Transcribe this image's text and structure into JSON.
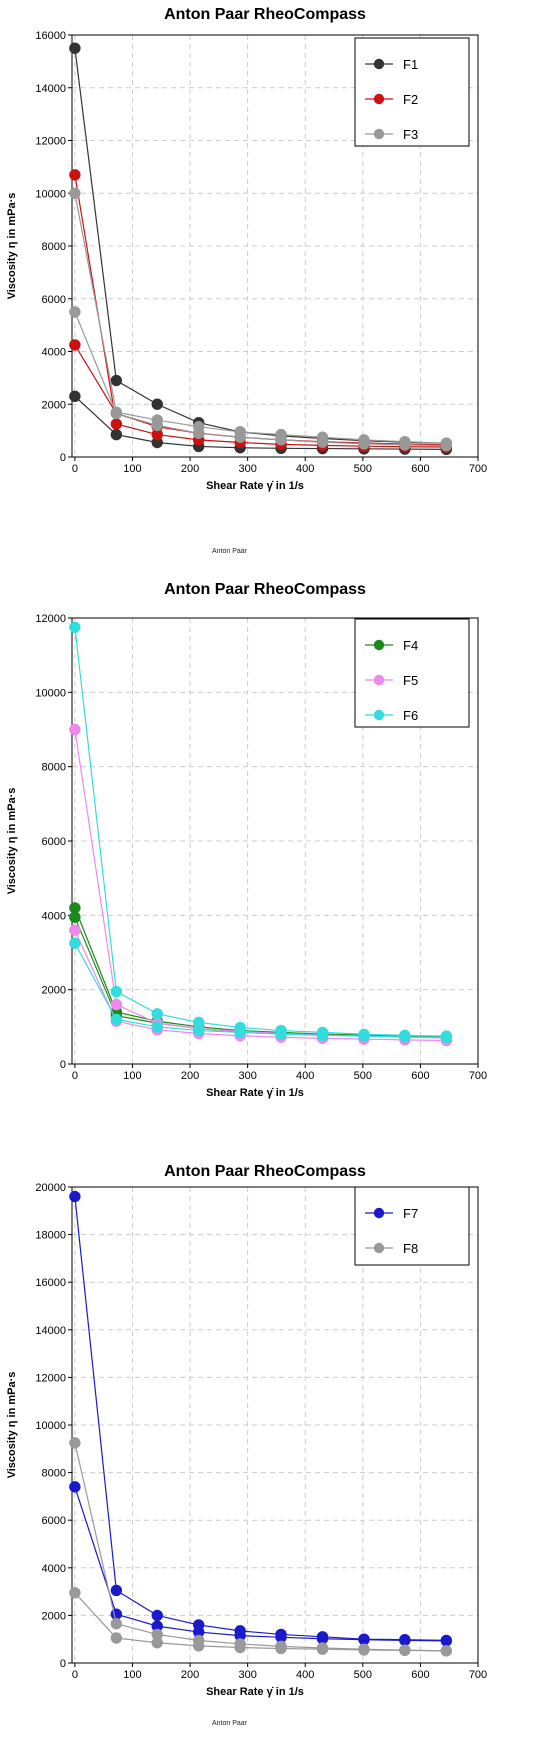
{
  "chart_data": [
    {
      "type": "line",
      "title": "Anton Paar RheoCompass",
      "footer": "Anton Paar",
      "xlabel": "Shear Rate γ̇ in 1/s",
      "ylabel": "Viscosity η in mPa·s",
      "xlim": [
        -5,
        700
      ],
      "ylim": [
        0,
        16000
      ],
      "xticks": [
        0,
        100,
        200,
        300,
        400,
        500,
        600,
        700
      ],
      "yticks": [
        0,
        2000,
        4000,
        6000,
        8000,
        10000,
        12000,
        14000,
        16000
      ],
      "grid": true,
      "legend_position": "top-right",
      "x": [
        0,
        72,
        143,
        215,
        287,
        358,
        430,
        502,
        573,
        645
      ],
      "series": [
        {
          "name": "F1",
          "color": "#333333",
          "segments": [
            {
              "x": [
                0,
                72,
                143,
                215,
                287,
                358,
                430,
                502,
                573,
                645
              ],
              "y": [
                15500,
                2900,
                2000,
                1300,
                950,
                800,
                700,
                620,
                560,
                520
              ]
            },
            {
              "x": [
                0,
                72,
                143,
                215,
                287,
                358,
                430,
                502,
                573,
                645
              ],
              "y": [
                2300,
                850,
                550,
                400,
                350,
                330,
                320,
                310,
                300,
                290
              ]
            }
          ]
        },
        {
          "name": "F2",
          "color": "#cc1111",
          "segments": [
            {
              "x": [
                0,
                72,
                143,
                215,
                287,
                358,
                430,
                502,
                573,
                645
              ],
              "y": [
                10700,
                1250,
                850,
                650,
                550,
                480,
                440,
                410,
                390,
                380
              ]
            },
            {
              "x": [
                0,
                72,
                143,
                215,
                287,
                358,
                430,
                502,
                573,
                645
              ],
              "y": [
                4250,
                1650,
                1150,
                900,
                750,
                650,
                580,
                530,
                490,
                460
              ]
            }
          ]
        },
        {
          "name": "F3",
          "color": "#999999",
          "segments": [
            {
              "x": [
                0,
                72,
                143,
                215,
                287,
                358,
                430,
                502,
                573,
                645
              ],
              "y": [
                10000,
                1700,
                1400,
                1150,
                950,
                850,
                750,
                650,
                580,
                520
              ]
            },
            {
              "x": [
                0,
                72,
                143,
                215,
                287,
                358,
                430,
                502,
                573,
                645
              ],
              "y": [
                5500,
                1650,
                1200,
                900,
                750,
                650,
                560,
                500,
                460,
                430
              ]
            }
          ]
        }
      ]
    },
    {
      "type": "line",
      "title": "Anton Paar RheoCompass",
      "footer": "",
      "xlabel": "Shear Rate γ̇ in 1/s",
      "ylabel": "Viscosity η in mPa·s",
      "xlim": [
        -5,
        700
      ],
      "ylim": [
        0,
        12000
      ],
      "xticks": [
        0,
        100,
        200,
        300,
        400,
        500,
        600,
        700
      ],
      "yticks": [
        0,
        2000,
        4000,
        6000,
        8000,
        10000,
        12000
      ],
      "grid": true,
      "legend_position": "top-right",
      "x": [
        0,
        72,
        143,
        215,
        287,
        358,
        430,
        502,
        573,
        645
      ],
      "series": [
        {
          "name": "F4",
          "color": "#1a8a1a",
          "segments": [
            {
              "x": [
                0,
                72,
                143,
                215,
                287,
                358,
                430,
                502,
                573,
                645
              ],
              "y": [
                4200,
                1400,
                1150,
                1000,
                900,
                850,
                800,
                780,
                760,
                740
              ]
            },
            {
              "x": [
                0,
                72,
                143,
                215,
                287,
                358,
                430,
                502,
                573,
                645
              ],
              "y": [
                3950,
                1300,
                1100,
                950,
                870,
                820,
                780,
                760,
                740,
                720
              ]
            }
          ]
        },
        {
          "name": "F5",
          "color": "#ee88ee",
          "segments": [
            {
              "x": [
                0,
                72,
                143,
                215,
                287,
                358,
                430,
                502,
                573,
                645
              ],
              "y": [
                9000,
                1600,
                1100,
                950,
                880,
                820,
                780,
                750,
                720,
                700
              ]
            },
            {
              "x": [
                0,
                72,
                143,
                215,
                287,
                358,
                430,
                502,
                573,
                645
              ],
              "y": [
                3600,
                1150,
                920,
                820,
                760,
                720,
                690,
                670,
                650,
                630
              ]
            }
          ]
        },
        {
          "name": "F6",
          "color": "#33dddd",
          "segments": [
            {
              "x": [
                0,
                72,
                143,
                215,
                287,
                358,
                430,
                502,
                573,
                645
              ],
              "y": [
                11750,
                1950,
                1350,
                1120,
                980,
                900,
                850,
                800,
                770,
                750
              ]
            },
            {
              "x": [
                0,
                72,
                143,
                215,
                287,
                358,
                430,
                502,
                573,
                645
              ],
              "y": [
                3250,
                1200,
                1000,
                900,
                850,
                800,
                770,
                750,
                730,
                710
              ]
            }
          ]
        }
      ]
    },
    {
      "type": "line",
      "title": "Anton Paar RheoCompass",
      "footer": "Anton Paar",
      "xlabel": "Shear Rate γ̇ in 1/s",
      "ylabel": "Viscosity η in mPa·s",
      "xlim": [
        -5,
        700
      ],
      "ylim": [
        0,
        20000
      ],
      "xticks": [
        0,
        100,
        200,
        300,
        400,
        500,
        600,
        700
      ],
      "yticks": [
        0,
        2000,
        4000,
        6000,
        8000,
        10000,
        12000,
        14000,
        16000,
        18000,
        20000
      ],
      "grid": true,
      "legend_position": "top-right",
      "x": [
        0,
        72,
        143,
        215,
        287,
        358,
        430,
        502,
        573,
        645
      ],
      "series": [
        {
          "name": "F7",
          "color": "#1a1acc",
          "segments": [
            {
              "x": [
                0,
                72,
                143,
                215,
                287,
                358,
                430,
                502,
                573,
                645
              ],
              "y": [
                19600,
                3050,
                2000,
                1600,
                1350,
                1200,
                1100,
                1000,
                980,
                950
              ]
            },
            {
              "x": [
                0,
                72,
                143,
                215,
                287,
                358,
                430,
                502,
                573,
                645
              ],
              "y": [
                7400,
                2050,
                1550,
                1300,
                1150,
                1080,
                1020,
                980,
                950,
                930
              ]
            }
          ]
        },
        {
          "name": "F8",
          "color": "#999999",
          "segments": [
            {
              "x": [
                0,
                72,
                143,
                215,
                287,
                358,
                430,
                502,
                573,
                645
              ],
              "y": [
                9250,
                1650,
                1200,
                950,
                800,
                700,
                630,
                580,
                540,
                510
              ]
            },
            {
              "x": [
                0,
                72,
                143,
                215,
                287,
                358,
                430,
                502,
                573,
                645
              ],
              "y": [
                2950,
                1050,
                850,
                720,
                650,
                610,
                580,
                550,
                530,
                510
              ]
            }
          ]
        }
      ]
    }
  ]
}
